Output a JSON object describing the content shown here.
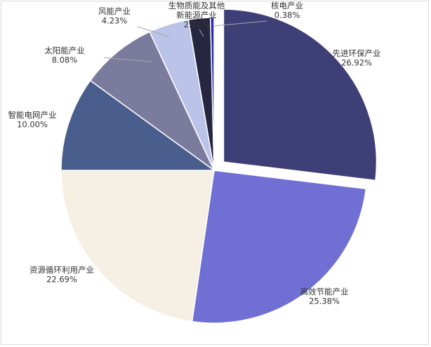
{
  "chart_data": {
    "type": "pie",
    "title": "",
    "slices": [
      {
        "name": "先进环保产业",
        "percent": "26.92%",
        "value": 26.92,
        "color": "#3f3f77",
        "exploded": true
      },
      {
        "name": "高效节能产业",
        "percent": "25.38%",
        "value": 25.38,
        "color": "#7070d4",
        "exploded": false
      },
      {
        "name": "资源循环利用产业",
        "percent": "22.69%",
        "value": 22.69,
        "color": "#f5f0e3",
        "exploded": false
      },
      {
        "name": "智能电网产业",
        "percent": "10.00%",
        "value": 10.0,
        "color": "#4a5e8e",
        "exploded": false
      },
      {
        "name": "太阳能产业",
        "percent": "8.08%",
        "value": 8.08,
        "color": "#7b7b9d",
        "exploded": false
      },
      {
        "name": "风能产业",
        "percent": "4.23%",
        "value": 4.23,
        "color": "#bcc3e8",
        "exploded": false
      },
      {
        "name": "生物质能及其他新能源产业",
        "name_lines": [
          "生物质能及其他",
          "新能源产业"
        ],
        "percent": "2.31%",
        "value": 2.31,
        "color": "#262640",
        "exploded": false
      },
      {
        "name": "核电产业",
        "percent": "0.38%",
        "value": 0.38,
        "color": "#2a2ab0",
        "exploded": false
      }
    ]
  }
}
